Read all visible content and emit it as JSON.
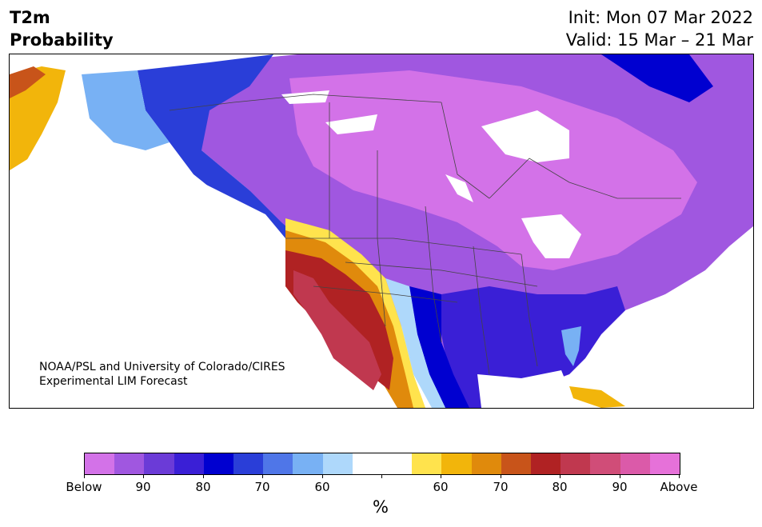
{
  "header": {
    "title_line1": "T2m",
    "title_line2": "Probability",
    "init_text": "Init: Mon 07 Mar 2022",
    "valid_text": "Valid: 15 Mar – 21 Mar"
  },
  "credit": {
    "line1": "NOAA/PSL and University of Colorado/CIRES",
    "line2": "Experimental LIM Forecast"
  },
  "colorbar": {
    "label": "%",
    "colors": [
      "#d372e8",
      "#a057e0",
      "#6b3bd7",
      "#3a1fd6",
      "#0000d0",
      "#2a3ed8",
      "#4f76e8",
      "#78b1f4",
      "#aed8fb",
      "#ffffff",
      "#ffffff",
      "#ffe34d",
      "#f2b50b",
      "#e08a0c",
      "#c8541a",
      "#b02223",
      "#c0384f",
      "#d04d78",
      "#db5aa9",
      "#e671d9"
    ],
    "tick_labels": [
      "Below",
      "90",
      "80",
      "70",
      "60",
      "",
      "60",
      "70",
      "80",
      "90",
      "Above"
    ]
  },
  "map": {
    "region": "North America",
    "below_colors": [
      "#d372e8",
      "#a057e0",
      "#6b3bd7",
      "#3a1fd6",
      "#0000d0",
      "#2a3ed8",
      "#4f76e8",
      "#78b1f4",
      "#aed8fb"
    ],
    "above_colors": [
      "#ffe34d",
      "#f2b50b",
      "#e08a0c",
      "#c8541a",
      "#b02223",
      "#c0384f",
      "#d04d78"
    ]
  }
}
